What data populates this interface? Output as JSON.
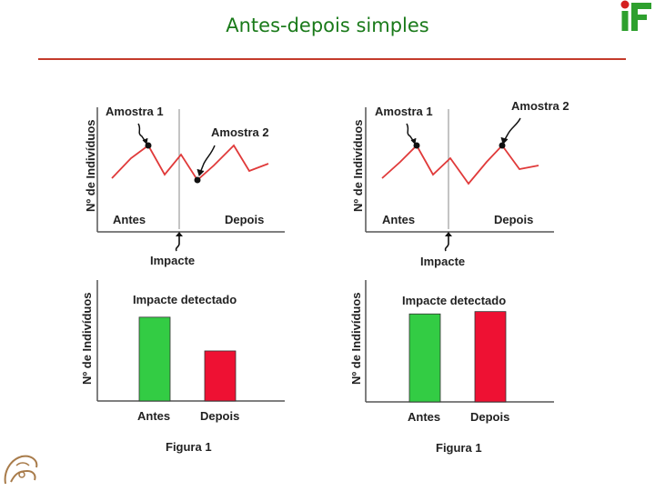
{
  "slide": {
    "title": "Antes-depois simples"
  },
  "panels": [
    {
      "id": "left",
      "top_chart": {
        "ylabel": "Nº de Indivíduos",
        "sample1": "Amostra 1",
        "sample2": "Amostra 2",
        "before": "Antes",
        "after": "Depois",
        "impact": "Impacte"
      },
      "chart_data": {
        "type": "bar",
        "title": "Impacte detectado",
        "categories": [
          "Antes",
          "Depois"
        ],
        "values": [
          0.72,
          0.43
        ],
        "ylabel": "Nº de Indivíduos",
        "caption": "Figura 1",
        "colors": [
          "#33cc44",
          "#ee1133"
        ]
      }
    },
    {
      "id": "right",
      "top_chart": {
        "ylabel": "Nº de Indivíduos",
        "sample1": "Amostra 1",
        "sample2": "Amostra 2",
        "before": "Antes",
        "after": "Depois",
        "impact": "Impacte"
      },
      "chart_data": {
        "type": "bar",
        "title": "Impacte detectado",
        "categories": [
          "Antes",
          "Depois"
        ],
        "values": [
          0.75,
          0.77
        ],
        "ylabel": "Nº de Indivíduos",
        "caption": "Figura 1",
        "colors": [
          "#33cc44",
          "#ee1133"
        ]
      }
    }
  ],
  "colors": {
    "title": "#1a7a1a",
    "rule": "#c33b2b",
    "line": "#e03a3a"
  }
}
